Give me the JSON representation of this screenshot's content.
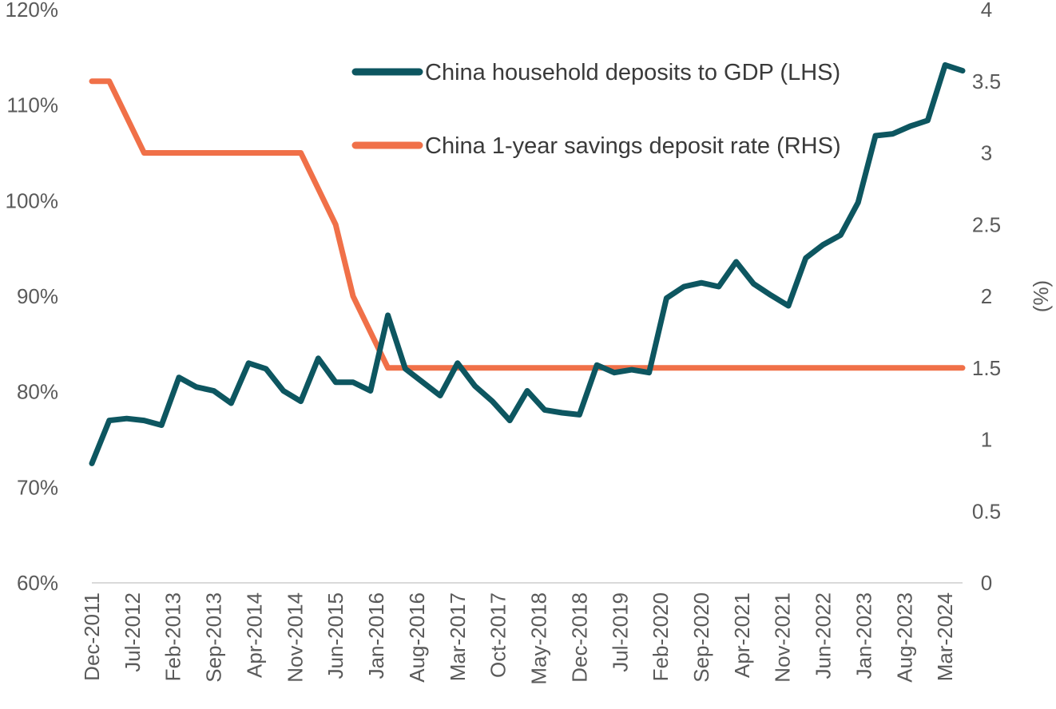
{
  "chart_data": {
    "type": "line",
    "title": "",
    "xlabel": "",
    "ylabel_left": "",
    "ylabel_right": "(%)",
    "x_tick_labels": [
      "Dec-2011",
      "Jul-2012",
      "Feb-2013",
      "Sep-2013",
      "Apr-2014",
      "Nov-2014",
      "Jun-2015",
      "Jan-2016",
      "Aug-2016",
      "Mar-2017",
      "Oct-2017",
      "May-2018",
      "Dec-2018",
      "Jul-2019",
      "Feb-2020",
      "Sep-2020",
      "Apr-2021",
      "Nov-2021",
      "Jun-2022",
      "Jan-2023",
      "Aug-2023",
      "Mar-2024"
    ],
    "x_range": [
      "Dec-2011",
      "Jun-2024"
    ],
    "y_left": {
      "min": 60,
      "max": 120,
      "ticks": [
        60,
        70,
        80,
        90,
        100,
        110,
        120
      ],
      "tick_labels": [
        "60%",
        "70%",
        "80%",
        "90%",
        "100%",
        "110%",
        "120%"
      ]
    },
    "y_right": {
      "min": 0,
      "max": 4,
      "ticks": [
        0,
        0.5,
        1,
        1.5,
        2,
        2.5,
        3,
        3.5,
        4
      ],
      "tick_labels": [
        "0",
        "0.5",
        "1",
        "1.5",
        "2",
        "2.5",
        "3",
        "3.5",
        "4"
      ]
    },
    "grid": false,
    "legend_position": "top-right",
    "series": [
      {
        "name": "China household deposits to GDP (LHS)",
        "axis": "left",
        "color": "#0d5660",
        "x": [
          "Dec-2011",
          "Mar-2012",
          "Jun-2012",
          "Sep-2012",
          "Dec-2012",
          "Mar-2013",
          "Jun-2013",
          "Sep-2013",
          "Dec-2013",
          "Mar-2014",
          "Jun-2014",
          "Sep-2014",
          "Dec-2014",
          "Mar-2015",
          "Jun-2015",
          "Sep-2015",
          "Dec-2015",
          "Mar-2016",
          "Jun-2016",
          "Sep-2016",
          "Dec-2016",
          "Mar-2017",
          "Jun-2017",
          "Sep-2017",
          "Dec-2017",
          "Mar-2018",
          "Jun-2018",
          "Sep-2018",
          "Dec-2018",
          "Mar-2019",
          "Jun-2019",
          "Sep-2019",
          "Dec-2019",
          "Mar-2020",
          "Jun-2020",
          "Sep-2020",
          "Dec-2020",
          "Mar-2021",
          "Jun-2021",
          "Sep-2021",
          "Dec-2021",
          "Mar-2022",
          "Jun-2022",
          "Sep-2022",
          "Dec-2022",
          "Mar-2023",
          "Jun-2023",
          "Sep-2023",
          "Dec-2023",
          "Mar-2024",
          "Jun-2024"
        ],
        "values": [
          72.5,
          77.0,
          77.2,
          77.0,
          76.5,
          81.5,
          80.5,
          80.1,
          78.8,
          83.0,
          82.4,
          80.1,
          79.0,
          83.5,
          81.0,
          81.0,
          80.1,
          88.0,
          82.4,
          81.0,
          79.6,
          83.0,
          80.6,
          79.0,
          77.0,
          80.1,
          78.1,
          77.8,
          77.6,
          82.8,
          82.0,
          82.3,
          82.0,
          89.8,
          91.0,
          91.4,
          91.0,
          93.6,
          91.3,
          90.1,
          89.0,
          94.0,
          95.4,
          96.4,
          99.8,
          106.8,
          107.0,
          107.8,
          108.4,
          114.2,
          113.6
        ]
      },
      {
        "name": "China 1-year savings deposit rate (RHS)",
        "axis": "right",
        "color": "#f07048",
        "x": [
          "Dec-2011",
          "Mar-2012",
          "Jun-2012",
          "Sep-2012",
          "Dec-2012",
          "Mar-2013",
          "Jun-2013",
          "Sep-2013",
          "Dec-2013",
          "Mar-2014",
          "Jun-2014",
          "Sep-2014",
          "Dec-2014",
          "Mar-2015",
          "Jun-2015",
          "Sep-2015",
          "Dec-2015",
          "Mar-2016",
          "Jun-2016",
          "Sep-2016",
          "Dec-2016",
          "Mar-2017",
          "Jun-2017",
          "Sep-2017",
          "Dec-2017",
          "Mar-2018",
          "Jun-2018",
          "Sep-2018",
          "Dec-2018",
          "Mar-2019",
          "Jun-2019",
          "Sep-2019",
          "Dec-2019",
          "Mar-2020",
          "Jun-2020",
          "Sep-2020",
          "Dec-2020",
          "Mar-2021",
          "Jun-2021",
          "Sep-2021",
          "Dec-2021",
          "Mar-2022",
          "Jun-2022",
          "Sep-2022",
          "Dec-2022",
          "Mar-2023",
          "Jun-2023",
          "Sep-2023",
          "Dec-2023",
          "Mar-2024",
          "Jun-2024"
        ],
        "values": [
          3.5,
          3.5,
          3.25,
          3.0,
          3.0,
          3.0,
          3.0,
          3.0,
          3.0,
          3.0,
          3.0,
          3.0,
          3.0,
          2.75,
          2.5,
          2.0,
          1.75,
          1.5,
          1.5,
          1.5,
          1.5,
          1.5,
          1.5,
          1.5,
          1.5,
          1.5,
          1.5,
          1.5,
          1.5,
          1.5,
          1.5,
          1.5,
          1.5,
          1.5,
          1.5,
          1.5,
          1.5,
          1.5,
          1.5,
          1.5,
          1.5,
          1.5,
          1.5,
          1.5,
          1.5,
          1.5,
          1.5,
          1.5,
          1.5,
          1.5,
          1.5
        ]
      }
    ]
  },
  "colors": {
    "axis_line": "#d9d9d9",
    "tick_text": "#5a5a5a",
    "legend_text": "#3a3a3a"
  }
}
